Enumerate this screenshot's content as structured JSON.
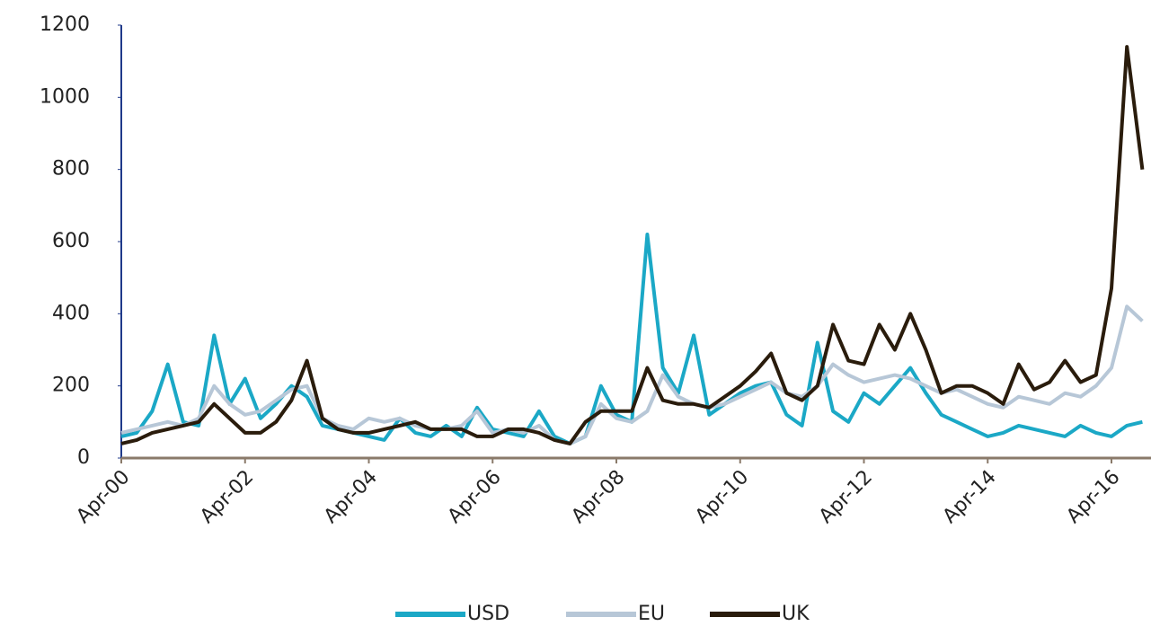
{
  "chart_data": {
    "type": "line",
    "categories": [
      "Apr-00",
      null,
      null,
      null,
      null,
      null,
      null,
      null,
      "Apr-02",
      null,
      null,
      null,
      null,
      null,
      null,
      null,
      "Apr-04",
      null,
      null,
      null,
      null,
      null,
      null,
      null,
      "Apr-06",
      null,
      null,
      null,
      null,
      null,
      null,
      null,
      "Apr-08",
      null,
      null,
      null,
      null,
      null,
      null,
      null,
      "Apr-10",
      null,
      null,
      null,
      null,
      null,
      null,
      null,
      "Apr-12",
      null,
      null,
      null,
      null,
      null,
      null,
      null,
      "Apr-14",
      null,
      null,
      null,
      null,
      null,
      null,
      null,
      "Apr-16",
      null,
      null
    ],
    "series": [
      {
        "name": "USD",
        "color": "#1ba8c6",
        "values": [
          60,
          70,
          130,
          260,
          100,
          90,
          340,
          150,
          220,
          110,
          150,
          200,
          170,
          90,
          80,
          70,
          60,
          50,
          110,
          70,
          60,
          90,
          60,
          140,
          80,
          70,
          60,
          130,
          60,
          40,
          60,
          200,
          120,
          100,
          620,
          250,
          180,
          340,
          120,
          150,
          180,
          200,
          210,
          120,
          90,
          320,
          130,
          100,
          180,
          150,
          200,
          250,
          180,
          120,
          100,
          80,
          60,
          70,
          90,
          80,
          70,
          60,
          90,
          70,
          60,
          90,
          100
        ]
      },
      {
        "name": "EU",
        "color": "#b7c7d7",
        "values": [
          70,
          80,
          90,
          100,
          90,
          110,
          200,
          150,
          120,
          130,
          160,
          190,
          200,
          110,
          90,
          80,
          110,
          100,
          110,
          90,
          80,
          80,
          90,
          130,
          70,
          80,
          70,
          90,
          50,
          40,
          60,
          150,
          110,
          100,
          130,
          230,
          170,
          150,
          140,
          150,
          170,
          190,
          210,
          180,
          170,
          200,
          260,
          230,
          210,
          220,
          230,
          220,
          200,
          180,
          190,
          170,
          150,
          140,
          170,
          160,
          150,
          180,
          170,
          200,
          250,
          420,
          380
        ]
      },
      {
        "name": "UK",
        "color": "#2a1c0c",
        "values": [
          40,
          50,
          70,
          80,
          90,
          100,
          150,
          110,
          70,
          70,
          100,
          160,
          270,
          110,
          80,
          70,
          70,
          80,
          90,
          100,
          80,
          80,
          80,
          60,
          60,
          80,
          80,
          70,
          50,
          40,
          100,
          130,
          130,
          130,
          250,
          160,
          150,
          150,
          140,
          170,
          200,
          240,
          290,
          180,
          160,
          200,
          370,
          270,
          260,
          370,
          300,
          400,
          300,
          180,
          200,
          200,
          180,
          150,
          260,
          190,
          210,
          270,
          210,
          230,
          470,
          1140,
          800
        ]
      }
    ],
    "ylim": [
      0,
      1200
    ],
    "yticks": [
      0,
      200,
      400,
      600,
      800,
      1000,
      1200
    ],
    "grid": false,
    "legend": "bottom"
  }
}
